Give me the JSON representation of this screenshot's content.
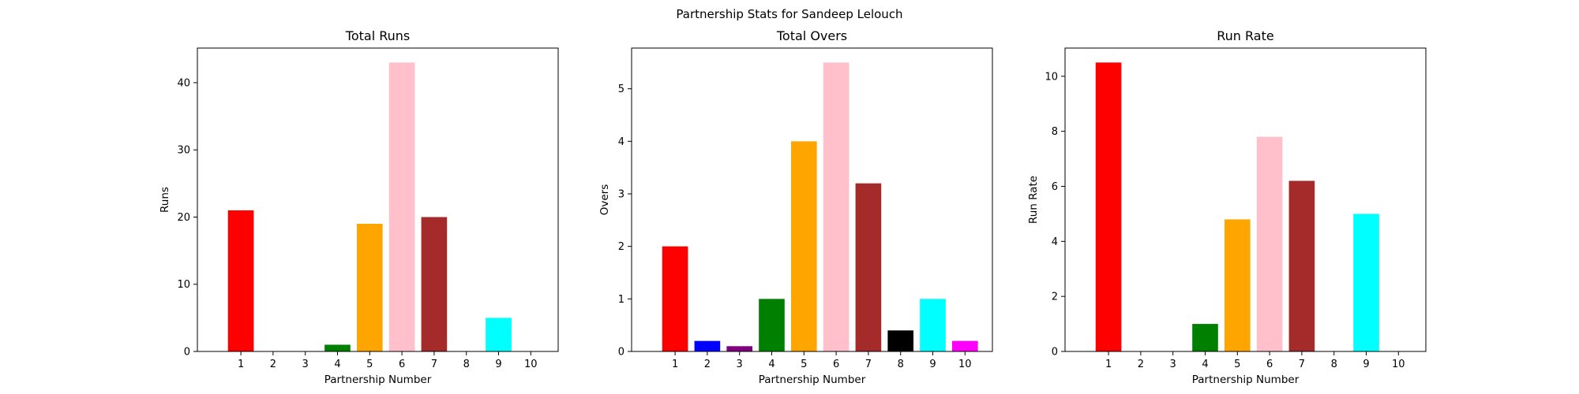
{
  "figure": {
    "suptitle": "Partnership Stats for Sandeep Lelouch"
  },
  "colors": [
    "#ff0000",
    "#0000ff",
    "#800080",
    "#008000",
    "#ffa500",
    "#ffc0cb",
    "#a52a2a",
    "#000000",
    "#00ffff",
    "#ff00ff"
  ],
  "chart_data": [
    {
      "type": "bar",
      "title": "Total Runs",
      "xlabel": "Partnership Number",
      "ylabel": "Runs",
      "categories": [
        "1",
        "2",
        "3",
        "4",
        "5",
        "6",
        "7",
        "8",
        "9",
        "10"
      ],
      "values": [
        21,
        0,
        0,
        1,
        19,
        43,
        20,
        0,
        5,
        0
      ],
      "ylim": [
        0,
        45.15
      ],
      "yticks": [
        0,
        10,
        20,
        30,
        40
      ],
      "grid": false
    },
    {
      "type": "bar",
      "title": "Total Overs",
      "xlabel": "Partnership Number",
      "ylabel": "Overs",
      "categories": [
        "1",
        "2",
        "3",
        "4",
        "5",
        "6",
        "7",
        "8",
        "9",
        "10"
      ],
      "values": [
        2.0,
        0.2,
        0.1,
        1.0,
        4.0,
        5.5,
        3.2,
        0.4,
        1.0,
        0.2
      ],
      "ylim": [
        0,
        5.775
      ],
      "yticks": [
        0,
        1,
        2,
        3,
        4,
        5
      ],
      "grid": false
    },
    {
      "type": "bar",
      "title": "Run Rate",
      "xlabel": "Partnership Number",
      "ylabel": "Run Rate",
      "categories": [
        "1",
        "2",
        "3",
        "4",
        "5",
        "6",
        "7",
        "8",
        "9",
        "10"
      ],
      "values": [
        10.5,
        0,
        0,
        1.0,
        4.8,
        7.8,
        6.2,
        0,
        5.0,
        0
      ],
      "ylim": [
        0,
        11.025
      ],
      "yticks": [
        0,
        2,
        4,
        6,
        8,
        10
      ],
      "grid": false
    }
  ]
}
